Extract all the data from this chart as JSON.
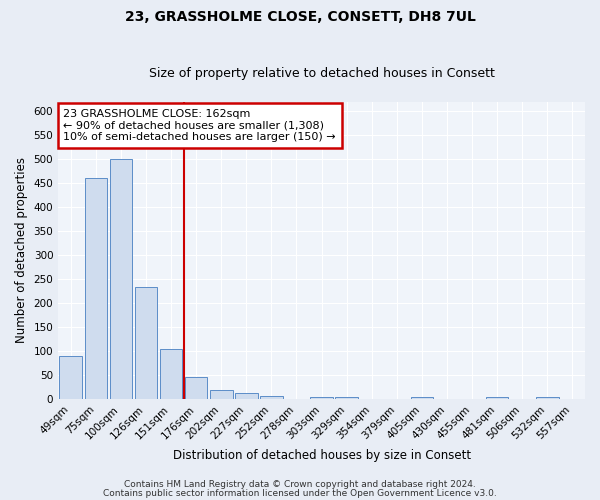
{
  "title": "23, GRASSHOLME CLOSE, CONSETT, DH8 7UL",
  "subtitle": "Size of property relative to detached houses in Consett",
  "xlabel": "Distribution of detached houses by size in Consett",
  "ylabel": "Number of detached properties",
  "categories": [
    "49sqm",
    "75sqm",
    "100sqm",
    "126sqm",
    "151sqm",
    "176sqm",
    "202sqm",
    "227sqm",
    "252sqm",
    "278sqm",
    "303sqm",
    "329sqm",
    "354sqm",
    "379sqm",
    "405sqm",
    "430sqm",
    "455sqm",
    "481sqm",
    "506sqm",
    "532sqm",
    "557sqm"
  ],
  "values": [
    90,
    460,
    500,
    235,
    105,
    46,
    20,
    13,
    8,
    0,
    5,
    5,
    0,
    0,
    5,
    0,
    0,
    5,
    0,
    5,
    0
  ],
  "bar_color": "#cfdcee",
  "bar_edge_color": "#5b8dc8",
  "red_line_x": 4.5,
  "annotation_text": "23 GRASSHOLME CLOSE: 162sqm\n← 90% of detached houses are smaller (1,308)\n10% of semi-detached houses are larger (150) →",
  "annotation_box_color": "white",
  "annotation_box_edge": "#cc0000",
  "footer1": "Contains HM Land Registry data © Crown copyright and database right 2024.",
  "footer2": "Contains public sector information licensed under the Open Government Licence v3.0.",
  "ylim": [
    0,
    620
  ],
  "yticks": [
    0,
    50,
    100,
    150,
    200,
    250,
    300,
    350,
    400,
    450,
    500,
    550,
    600
  ],
  "bg_color": "#e8edf5",
  "plot_bg_color": "#f0f4fa",
  "grid_color": "#ffffff",
  "title_fontsize": 10,
  "subtitle_fontsize": 9,
  "axis_label_fontsize": 8.5,
  "tick_fontsize": 7.5,
  "annotation_fontsize": 8,
  "footer_fontsize": 6.5
}
